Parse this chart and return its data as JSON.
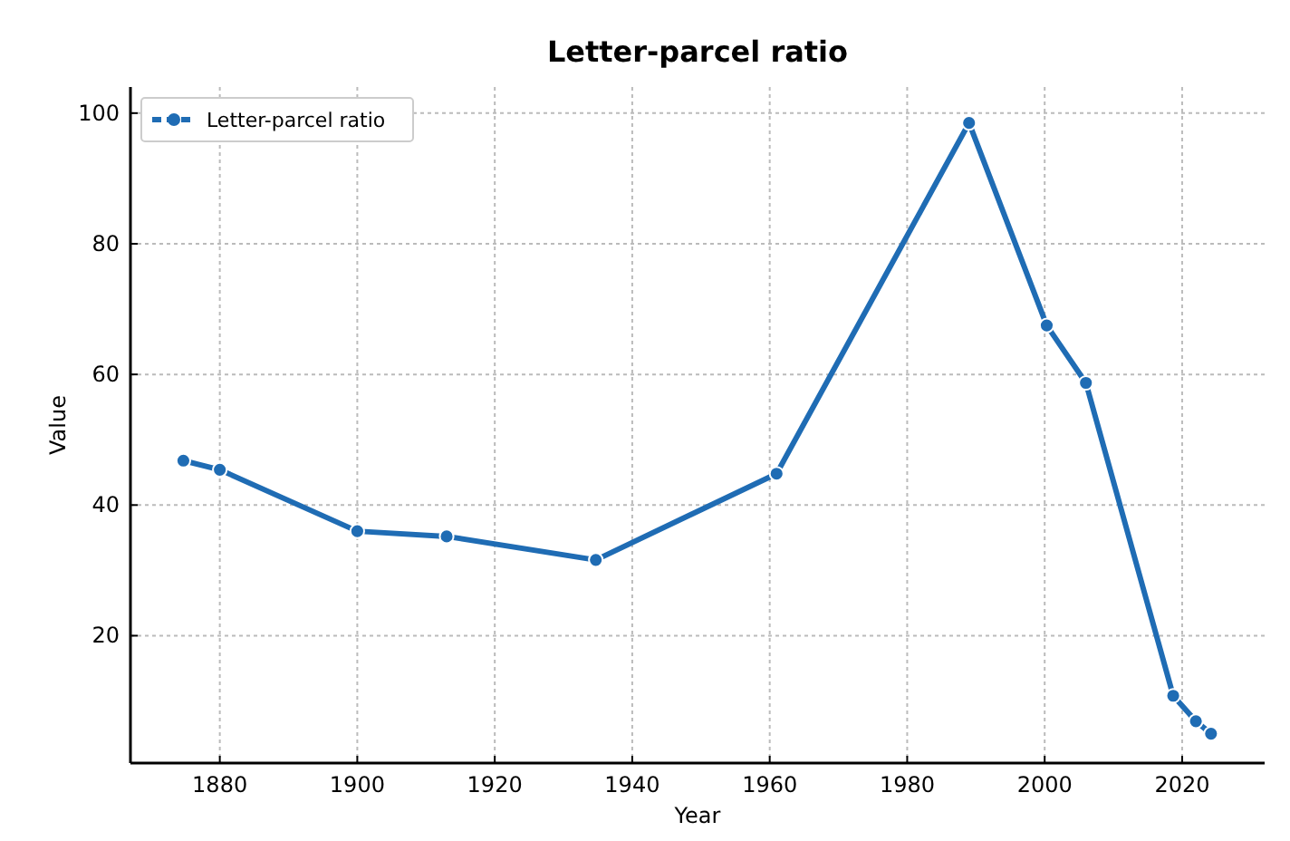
{
  "chart_data": {
    "type": "line",
    "title": "Letter-parcel ratio",
    "xlabel": "Year",
    "ylabel": "Value",
    "x": [
      1874.7,
      1880,
      1900,
      1913,
      1934.7,
      1961,
      1989,
      2000.3,
      2006,
      2018.7,
      2022,
      2024.2
    ],
    "series": [
      {
        "name": "Letter-parcel ratio",
        "color": "#1f6cb4",
        "values": [
          46.8,
          45.4,
          36.0,
          35.2,
          31.6,
          44.8,
          98.5,
          67.5,
          58.7,
          10.8,
          6.9,
          5.0
        ]
      }
    ],
    "xlim": [
      1867,
      2032
    ],
    "ylim": [
      0.5,
      104
    ],
    "xticks": [
      1880,
      1900,
      1920,
      1940,
      1960,
      1980,
      2000,
      2020
    ],
    "yticks": [
      20,
      40,
      60,
      80,
      100
    ],
    "grid": true,
    "legend": "top left",
    "marker": "circle",
    "line_style": "solid"
  }
}
